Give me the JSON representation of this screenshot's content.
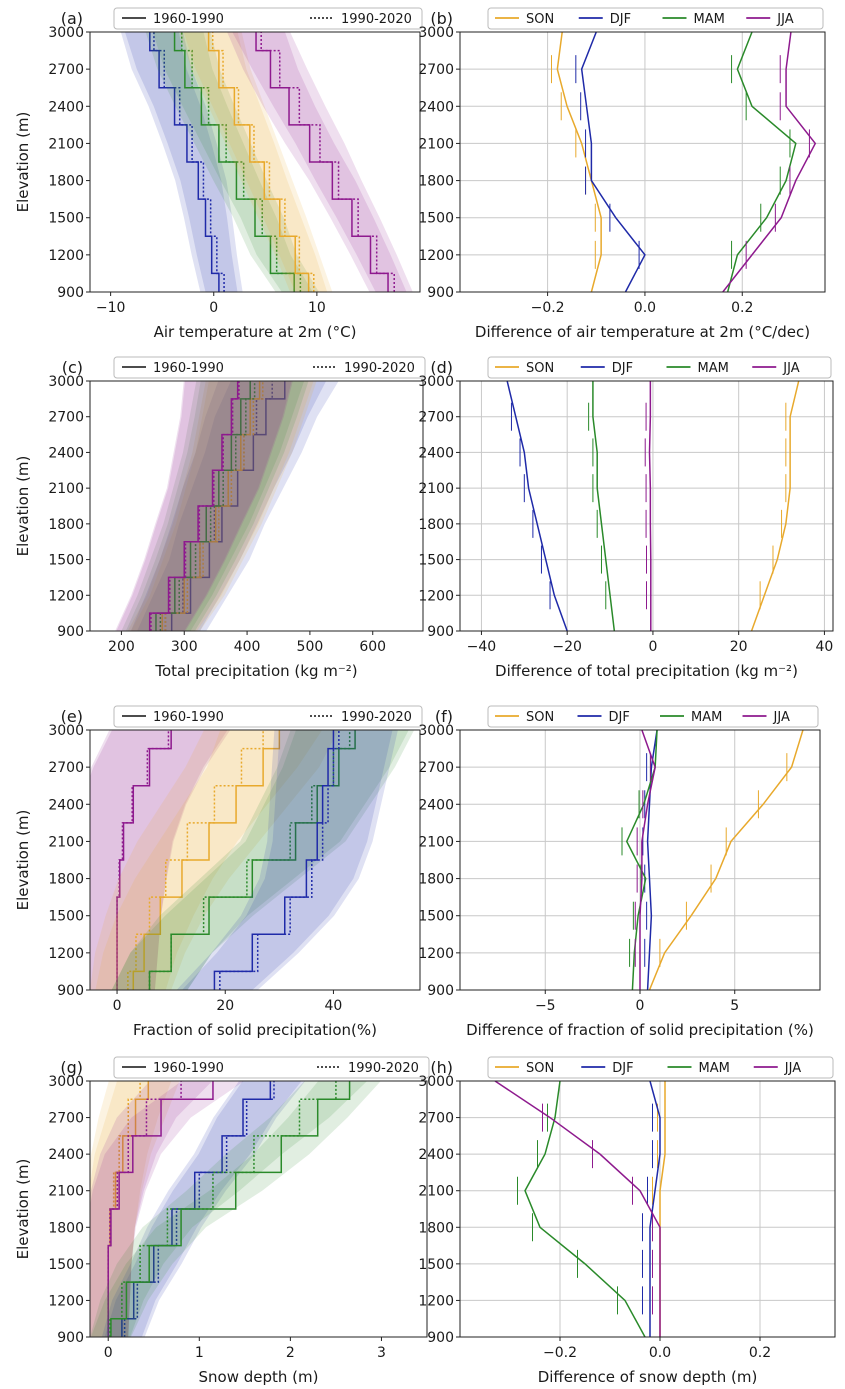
{
  "figure": {
    "elevation_label": "Elevation (m)",
    "levels": [
      900,
      1050,
      1350,
      1650,
      1950,
      2250,
      2550,
      2850,
      3000
    ],
    "y_ticks": [
      900,
      1200,
      1500,
      1800,
      2100,
      2400,
      2700,
      3000
    ],
    "ylim": [
      900,
      3000
    ],
    "season_colors": {
      "SON": "#e8a92c",
      "DJF": "#1f2aa8",
      "MAM": "#2a8a2a",
      "JJA": "#8e1a8e"
    },
    "period_legend": [
      {
        "label": "1960-1990",
        "style": "solid"
      },
      {
        "label": "1990-2020",
        "style": "dotted"
      }
    ],
    "season_legend": [
      "SON",
      "DJF",
      "MAM",
      "JJA"
    ]
  },
  "chart_data": [
    {
      "id": "a",
      "panel_label": "(a)",
      "type": "line",
      "kind": "step",
      "xlabel": "Air temperature at 2m (°C)",
      "xlim": [
        -12,
        20
      ],
      "xticks": [
        -10,
        0,
        10
      ],
      "grid": false,
      "legend": "period",
      "band": 1.8,
      "series": [
        {
          "season": "DJF",
          "p1": [
            0.5,
            -0.2,
            -0.8,
            -1.5,
            -2.6,
            -3.8,
            -5.3,
            -6.2
          ],
          "p2": [
            1.0,
            0.3,
            -0.3,
            -1.0,
            -2.1,
            -3.3,
            -4.8,
            -5.8
          ]
        },
        {
          "season": "MAM",
          "p1": [
            7.8,
            5.5,
            4.0,
            2.2,
            0.5,
            -1.2,
            -2.8,
            -3.8
          ],
          "p2": [
            8.4,
            6.1,
            4.7,
            2.9,
            1.2,
            -0.5,
            -2.1,
            -3.1
          ]
        },
        {
          "season": "SON",
          "p1": [
            9.2,
            7.9,
            6.4,
            4.9,
            3.5,
            2.0,
            0.5,
            -0.5
          ],
          "p2": [
            9.7,
            8.3,
            6.9,
            5.4,
            3.9,
            2.4,
            0.9,
            -0.1
          ]
        },
        {
          "season": "JJA",
          "p1": [
            16.9,
            15.2,
            13.4,
            11.5,
            9.3,
            7.3,
            5.5,
            4.1
          ],
          "p2": [
            17.5,
            15.8,
            14.0,
            12.1,
            10.3,
            8.3,
            6.4,
            4.6
          ]
        }
      ]
    },
    {
      "id": "b",
      "panel_label": "(b)",
      "type": "line",
      "kind": "diff",
      "xlabel": "Difference of air temperature at 2m (°C/dec)",
      "xlim": [
        -0.38,
        0.37
      ],
      "xticks": [
        -0.2,
        0.0,
        0.2
      ],
      "grid": true,
      "legend": "season",
      "err": 0.012,
      "series": [
        {
          "season": "SON",
          "values": [
            -0.11,
            -0.09,
            -0.09,
            -0.11,
            -0.13,
            -0.16,
            -0.18,
            -0.17
          ]
        },
        {
          "season": "DJF",
          "values": [
            -0.04,
            0.0,
            -0.06,
            -0.11,
            -0.11,
            -0.12,
            -0.13,
            -0.1
          ]
        },
        {
          "season": "MAM",
          "values": [
            0.17,
            0.19,
            0.25,
            0.29,
            0.31,
            0.22,
            0.19,
            0.22
          ]
        },
        {
          "season": "JJA",
          "values": [
            0.16,
            0.22,
            0.28,
            0.31,
            0.35,
            0.29,
            0.29,
            0.3
          ]
        }
      ]
    },
    {
      "id": "c",
      "panel_label": "(c)",
      "type": "line",
      "kind": "step",
      "xlabel": "Total precipitation (kg m⁻²)",
      "xlim": [
        150,
        680
      ],
      "xticks": [
        200,
        300,
        400,
        500,
        600
      ],
      "grid": false,
      "legend": "period",
      "band": 55,
      "series": [
        {
          "season": "DJF",
          "p1": [
            280,
            310,
            340,
            360,
            385,
            410,
            430,
            460
          ],
          "p2": [
            270,
            298,
            325,
            348,
            370,
            395,
            415,
            440
          ]
        },
        {
          "season": "SON",
          "p1": [
            265,
            300,
            325,
            350,
            370,
            390,
            405,
            420
          ],
          "p2": [
            270,
            305,
            330,
            355,
            375,
            395,
            410,
            425
          ]
        },
        {
          "season": "MAM",
          "p1": [
            255,
            285,
            310,
            335,
            355,
            375,
            390,
            405
          ],
          "p2": [
            262,
            292,
            318,
            342,
            362,
            382,
            398,
            412
          ]
        },
        {
          "season": "JJA",
          "p1": [
            245,
            275,
            300,
            322,
            345,
            360,
            375,
            385
          ],
          "p2": [
            247,
            277,
            302,
            324,
            347,
            362,
            377,
            387
          ]
        }
      ]
    },
    {
      "id": "d",
      "panel_label": "(d)",
      "type": "line",
      "kind": "diff",
      "xlabel": "Difference of total precipitation (kg m⁻²)",
      "xlim": [
        -45,
        42
      ],
      "xticks": [
        -40,
        -20,
        0,
        20,
        40
      ],
      "grid": true,
      "legend": "season",
      "err": 1.0,
      "series": [
        {
          "season": "SON",
          "values": [
            23,
            26,
            29,
            31,
            32,
            32,
            32,
            34
          ]
        },
        {
          "season": "DJF",
          "values": [
            -20,
            -23,
            -25,
            -27,
            -29,
            -30,
            -32,
            -34
          ]
        },
        {
          "season": "MAM",
          "values": [
            -9,
            -10,
            -11,
            -12,
            -13,
            -13,
            -14,
            -14
          ]
        },
        {
          "season": "JJA",
          "values": [
            -0.5,
            -0.5,
            -0.5,
            -0.6,
            -0.6,
            -0.8,
            -0.6,
            -0.6
          ]
        }
      ]
    },
    {
      "id": "e",
      "panel_label": "(e)",
      "type": "line",
      "kind": "step",
      "xlabel": "Fraction of solid precipitation(%)",
      "xlim": [
        -5,
        56
      ],
      "xticks": [
        0,
        20,
        40
      ],
      "grid": false,
      "legend": "period",
      "band": 7,
      "series": [
        {
          "season": "JJA",
          "p1": [
            0,
            0,
            0,
            0.5,
            1.2,
            3,
            6,
            10
          ],
          "p2": [
            0,
            0,
            0,
            0.4,
            1.0,
            2.8,
            5.6,
            9.5
          ]
        },
        {
          "season": "SON",
          "p1": [
            3,
            5,
            8,
            12,
            17,
            22,
            27,
            30
          ],
          "p2": [
            2,
            3.5,
            6,
            9,
            13,
            18,
            23,
            27
          ]
        },
        {
          "season": "MAM",
          "p1": [
            6,
            10,
            17,
            25,
            33,
            37,
            41,
            44
          ],
          "p2": [
            6,
            10,
            16,
            24,
            32,
            36,
            40,
            43
          ]
        },
        {
          "season": "DJF",
          "p1": [
            18,
            25,
            31,
            35,
            37,
            38,
            39,
            40
          ],
          "p2": [
            19,
            26,
            32,
            36,
            38,
            39,
            40,
            41
          ]
        }
      ]
    },
    {
      "id": "f",
      "panel_label": "(f)",
      "type": "line",
      "kind": "diff",
      "xlabel": "Difference of fraction of solid precipitation (%)",
      "xlim": [
        -9.5,
        9.5
      ],
      "xticks": [
        -5,
        0,
        5
      ],
      "grid": true,
      "legend": "season",
      "err": 0.25,
      "series": [
        {
          "season": "SON",
          "values": [
            0.5,
            1.3,
            2.7,
            4.0,
            4.8,
            6.5,
            8.0,
            8.6
          ]
        },
        {
          "season": "DJF",
          "values": [
            0.4,
            0.5,
            0.6,
            0.5,
            0.4,
            0.5,
            0.6,
            0.9
          ]
        },
        {
          "season": "MAM",
          "values": [
            -0.4,
            -0.3,
            -0.1,
            0.3,
            -0.7,
            0.2,
            0.8,
            0.9
          ]
        },
        {
          "season": "JJA",
          "values": [
            0.0,
            0.0,
            0.0,
            0.1,
            0.1,
            0.4,
            0.8,
            0.1
          ]
        }
      ]
    },
    {
      "id": "g",
      "panel_label": "(g)",
      "type": "line",
      "kind": "step",
      "xlabel": "Snow depth (m)",
      "xlim": [
        -0.2,
        3.5
      ],
      "xticks": [
        0,
        1,
        2,
        3
      ],
      "grid": false,
      "legend": "period",
      "band": 0.22,
      "series": [
        {
          "season": "SON",
          "p1": [
            0,
            0,
            0,
            0.02,
            0.08,
            0.16,
            0.3,
            0.44
          ],
          "p2": [
            0,
            0,
            0,
            0.02,
            0.06,
            0.12,
            0.22,
            0.35
          ]
        },
        {
          "season": "JJA",
          "p1": [
            0,
            0,
            0,
            0.03,
            0.12,
            0.27,
            0.58,
            1.15
          ],
          "p2": [
            0,
            0,
            0,
            0.02,
            0.1,
            0.22,
            0.42,
            0.8
          ]
        },
        {
          "season": "DJF",
          "p1": [
            0.15,
            0.28,
            0.5,
            0.7,
            0.95,
            1.25,
            1.48,
            1.78
          ],
          "p2": [
            0.18,
            0.32,
            0.55,
            0.75,
            1.0,
            1.3,
            1.52,
            1.82
          ]
        },
        {
          "season": "MAM",
          "p1": [
            0.03,
            0.2,
            0.45,
            0.8,
            1.4,
            1.9,
            2.3,
            2.65
          ],
          "p2": [
            0.02,
            0.15,
            0.35,
            0.65,
            1.15,
            1.6,
            2.1,
            2.5
          ]
        }
      ]
    },
    {
      "id": "h",
      "panel_label": "(h)",
      "type": "line",
      "kind": "diff",
      "xlabel": "Difference of snow depth (m)",
      "xlim": [
        -0.4,
        0.35
      ],
      "xticks": [
        -0.2,
        0.0,
        0.2
      ],
      "grid": true,
      "legend": "season",
      "err": 0.015,
      "series": [
        {
          "season": "SON",
          "values": [
            0.0,
            0.0,
            0.0,
            0.0,
            0.0,
            0.01,
            0.01,
            0.01
          ]
        },
        {
          "season": "DJF",
          "values": [
            -0.02,
            -0.02,
            -0.02,
            -0.02,
            -0.01,
            0.0,
            0.0,
            -0.02
          ]
        },
        {
          "season": "MAM",
          "values": [
            -0.03,
            -0.07,
            -0.15,
            -0.24,
            -0.27,
            -0.23,
            -0.21,
            -0.2
          ]
        },
        {
          "season": "JJA",
          "values": [
            0.0,
            0.0,
            0.0,
            0.0,
            -0.04,
            -0.12,
            -0.22,
            -0.33
          ]
        }
      ]
    }
  ]
}
